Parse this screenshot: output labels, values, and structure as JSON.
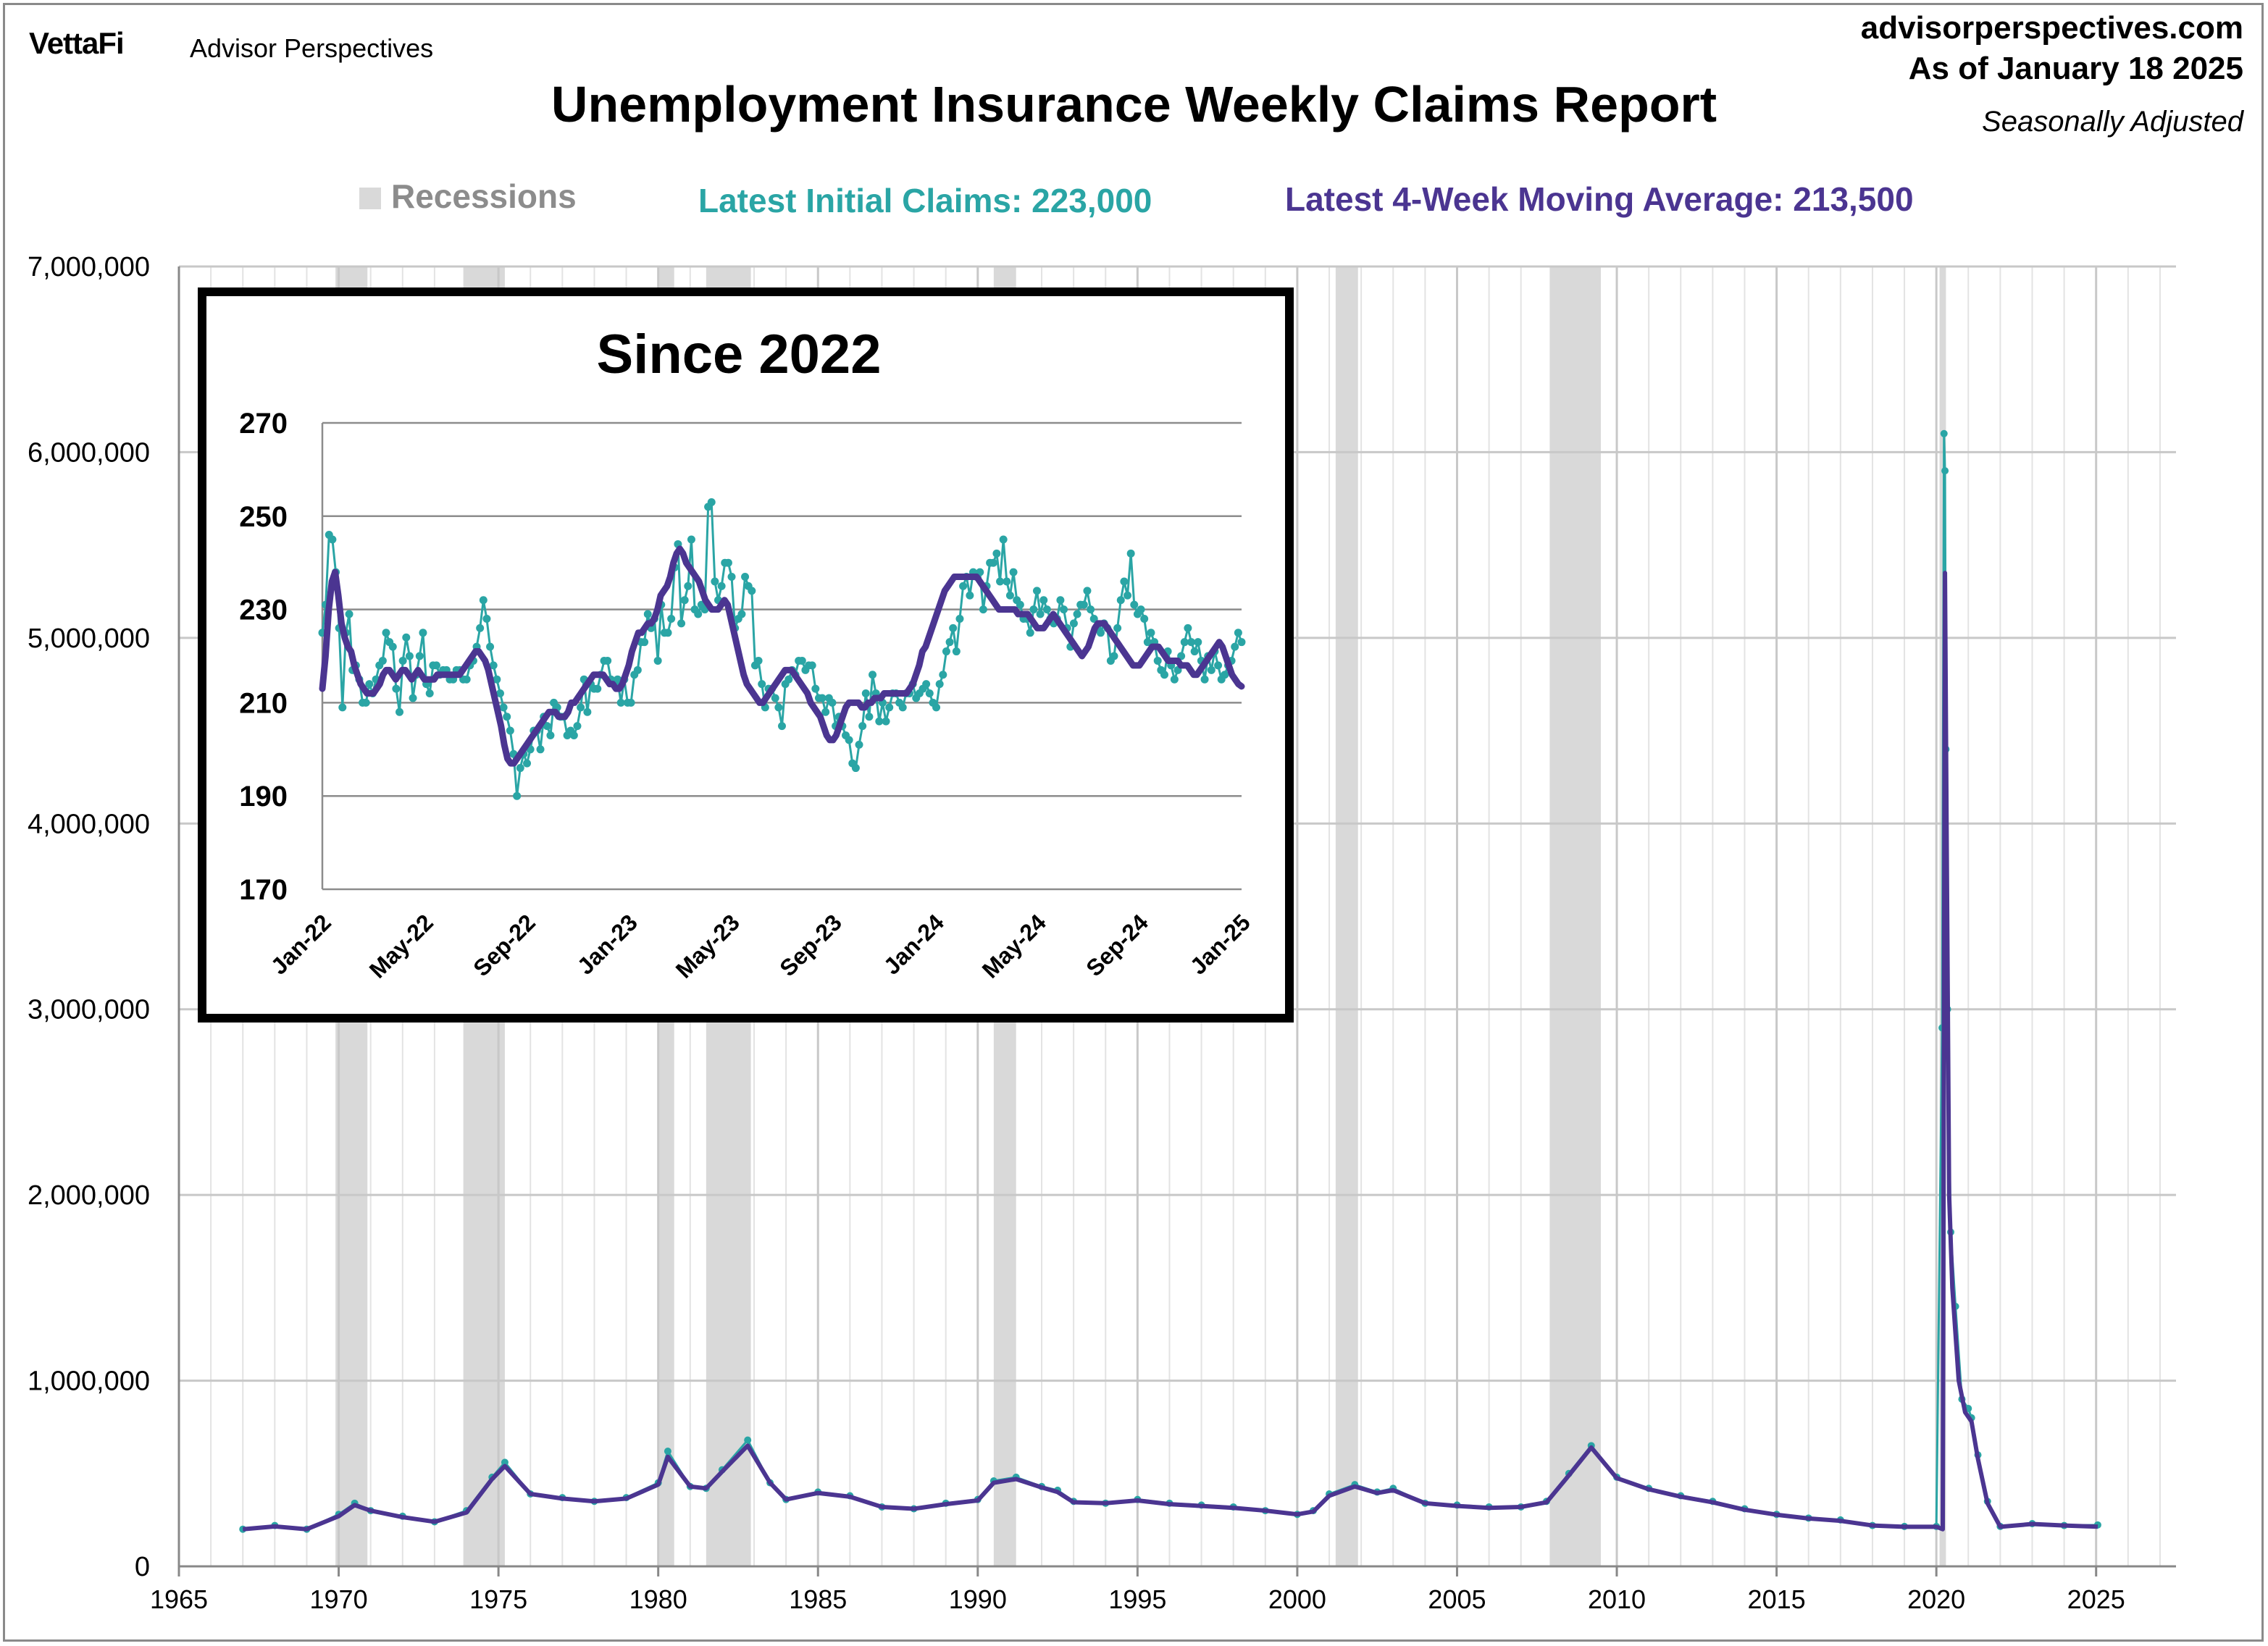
{
  "header": {
    "logo": "VettaFi",
    "brand": "Advisor Perspectives",
    "site": "advisorperspectives.com",
    "as_of": "As of January 18 2025",
    "adjustment": "Seasonally Adjusted",
    "title": "Unemployment Insurance Weekly Claims Report"
  },
  "legend": {
    "recessions": "Recessions",
    "initial_claims": "Latest Initial Claims: 223,000",
    "moving_average": "Latest 4-Week Moving Average: 213,500"
  },
  "colors": {
    "claims": "#2aa5a5",
    "moving_average": "#4b3591",
    "recession": "#d9d9d9",
    "grid": "#c8c8c8"
  },
  "chart_data": [
    {
      "type": "line",
      "title": "Unemployment Insurance Weekly Claims Report",
      "xlabel": "",
      "ylabel": "",
      "xlim": [
        1965,
        2027.5
      ],
      "ylim": [
        0,
        7000000
      ],
      "x_ticks": [
        "1965",
        "1970",
        "1975",
        "1980",
        "1985",
        "1990",
        "1995",
        "2000",
        "2005",
        "2010",
        "2015",
        "2020",
        "2025"
      ],
      "y_ticks": [
        "0",
        "1,000,000",
        "2,000,000",
        "3,000,000",
        "4,000,000",
        "5,000,000",
        "6,000,000",
        "7,000,000"
      ],
      "grid": "on",
      "recessions": [
        [
          1969.9,
          1970.9
        ],
        [
          1973.9,
          1975.2
        ],
        [
          1980.0,
          1980.5
        ],
        [
          1981.5,
          1982.9
        ],
        [
          1990.5,
          1991.2
        ],
        [
          2001.2,
          2001.9
        ],
        [
          2007.9,
          2009.5
        ],
        [
          2020.1,
          2020.3
        ]
      ],
      "series": [
        {
          "name": "Initial Claims",
          "x": [
            1967.0,
            1968.0,
            1969.0,
            1970.0,
            1970.5,
            1971.0,
            1972.0,
            1973.0,
            1974.0,
            1974.8,
            1975.2,
            1976.0,
            1977.0,
            1978.0,
            1979.0,
            1980.0,
            1980.3,
            1981.0,
            1981.5,
            1982.0,
            1982.8,
            1983.5,
            1984.0,
            1985.0,
            1986.0,
            1987.0,
            1988.0,
            1989.0,
            1990.0,
            1990.5,
            1991.2,
            1992.0,
            1992.5,
            1993.0,
            1994.0,
            1995.0,
            1996.0,
            1997.0,
            1998.0,
            1999.0,
            2000.0,
            2000.5,
            2001.0,
            2001.8,
            2002.5,
            2003.0,
            2004.0,
            2005.0,
            2006.0,
            2007.0,
            2007.8,
            2008.5,
            2009.2,
            2010.0,
            2011.0,
            2012.0,
            2013.0,
            2014.0,
            2015.0,
            2016.0,
            2017.0,
            2018.0,
            2019.0,
            2020.0,
            2020.18,
            2020.24,
            2020.27,
            2020.3,
            2020.35,
            2020.45,
            2020.6,
            2020.8,
            2021.0,
            2021.1,
            2021.3,
            2021.6,
            2022.0,
            2023.0,
            2024.0,
            2025.05
          ],
          "values": [
            200000,
            220000,
            200000,
            280000,
            340000,
            300000,
            270000,
            240000,
            300000,
            480000,
            560000,
            390000,
            370000,
            350000,
            370000,
            450000,
            620000,
            430000,
            420000,
            520000,
            680000,
            450000,
            360000,
            400000,
            380000,
            320000,
            310000,
            340000,
            360000,
            460000,
            480000,
            430000,
            410000,
            350000,
            340000,
            360000,
            340000,
            330000,
            320000,
            300000,
            280000,
            300000,
            390000,
            440000,
            400000,
            420000,
            340000,
            330000,
            320000,
            320000,
            350000,
            500000,
            650000,
            480000,
            420000,
            380000,
            350000,
            310000,
            280000,
            260000,
            250000,
            220000,
            215000,
            215000,
            2900000,
            6100000,
            5900000,
            4400000,
            3000000,
            1800000,
            1400000,
            900000,
            850000,
            800000,
            600000,
            350000,
            215000,
            230000,
            220000,
            223000
          ]
        },
        {
          "name": "4-Week Moving Average",
          "x": [
            1967.0,
            1968.0,
            1969.0,
            1970.0,
            1970.5,
            1971.0,
            1972.0,
            1973.0,
            1974.0,
            1974.8,
            1975.2,
            1976.0,
            1977.0,
            1978.0,
            1979.0,
            1980.0,
            1980.3,
            1981.0,
            1981.5,
            1982.0,
            1982.8,
            1983.5,
            1984.0,
            1985.0,
            1986.0,
            1987.0,
            1988.0,
            1989.0,
            1990.0,
            1990.5,
            1991.2,
            1992.0,
            1992.5,
            1993.0,
            1994.0,
            1995.0,
            1996.0,
            1997.0,
            1998.0,
            1999.0,
            2000.0,
            2000.5,
            2001.0,
            2001.8,
            2002.5,
            2003.0,
            2004.0,
            2005.0,
            2006.0,
            2007.0,
            2007.8,
            2008.5,
            2009.2,
            2010.0,
            2011.0,
            2012.0,
            2013.0,
            2014.0,
            2015.0,
            2016.0,
            2017.0,
            2018.0,
            2019.0,
            2020.0,
            2020.2,
            2020.27,
            2020.32,
            2020.4,
            2020.5,
            2020.7,
            2020.9,
            2021.1,
            2021.3,
            2021.6,
            2022.0,
            2023.0,
            2024.0,
            2025.05
          ],
          "values": [
            200000,
            215000,
            200000,
            270000,
            330000,
            300000,
            265000,
            240000,
            290000,
            470000,
            540000,
            390000,
            365000,
            350000,
            365000,
            440000,
            590000,
            430000,
            420000,
            510000,
            650000,
            450000,
            360000,
            395000,
            375000,
            320000,
            310000,
            335000,
            355000,
            450000,
            470000,
            425000,
            400000,
            345000,
            340000,
            355000,
            335000,
            325000,
            315000,
            300000,
            280000,
            295000,
            380000,
            430000,
            395000,
            410000,
            340000,
            325000,
            315000,
            320000,
            345000,
            490000,
            640000,
            475000,
            415000,
            375000,
            345000,
            305000,
            278000,
            258000,
            245000,
            220000,
            213000,
            213000,
            200000,
            5350000,
            4000000,
            2000000,
            1500000,
            1000000,
            830000,
            780000,
            580000,
            340000,
            213000,
            228000,
            220000,
            213500
          ]
        }
      ]
    },
    {
      "type": "line",
      "title": "Since 2022",
      "xlabel": "",
      "ylabel": "",
      "ylim": [
        170,
        270
      ],
      "x_ticks": [
        "Jan-22",
        "May-22",
        "Sep-22",
        "Jan-23",
        "May-23",
        "Sep-23",
        "Jan-24",
        "May-24",
        "Sep-24",
        "Jan-25"
      ],
      "y_ticks": [
        "170",
        "190",
        "210",
        "230",
        "250",
        "270"
      ],
      "grid": "on",
      "x_start": "Jan-22",
      "x_step": "1 week",
      "series": [
        {
          "name": "Initial Claims",
          "values": [
            225,
            231,
            246,
            245,
            238,
            226,
            209,
            225,
            229,
            217,
            218,
            215,
            210,
            210,
            214,
            212,
            215,
            218,
            219,
            225,
            223,
            222,
            213,
            208,
            219,
            224,
            220,
            211,
            216,
            220,
            225,
            214,
            212,
            218,
            218,
            216,
            217,
            217,
            215,
            215,
            217,
            217,
            215,
            215,
            218,
            219,
            222,
            226,
            232,
            228,
            222,
            218,
            215,
            212,
            209,
            207,
            204,
            199,
            190,
            196,
            199,
            197,
            200,
            204,
            204,
            200,
            207,
            205,
            203,
            210,
            209,
            207,
            207,
            203,
            204,
            203,
            205,
            209,
            215,
            208,
            214,
            213,
            213,
            216,
            219,
            219,
            215,
            214,
            215,
            210,
            215,
            210,
            210,
            216,
            217,
            223,
            223,
            229,
            226,
            228,
            219,
            231,
            225,
            225,
            228,
            239,
            244,
            227,
            232,
            235,
            245,
            230,
            229,
            231,
            230,
            252,
            253,
            236,
            232,
            235,
            240,
            240,
            237,
            226,
            228,
            229,
            237,
            235,
            234,
            218,
            219,
            214,
            209,
            213,
            213,
            211,
            209,
            205,
            214,
            215,
            217,
            216,
            219,
            219,
            217,
            218,
            218,
            213,
            211,
            211,
            208,
            211,
            210,
            205,
            207,
            205,
            203,
            202,
            197,
            196,
            201,
            205,
            212,
            207,
            216,
            212,
            206,
            210,
            206,
            209,
            212,
            212,
            210,
            209,
            212,
            212,
            214,
            211,
            212,
            213,
            214,
            212,
            210,
            209,
            214,
            216,
            221,
            223,
            226,
            221,
            228,
            235,
            237,
            233,
            238,
            237,
            238,
            230,
            235,
            240,
            240,
            242,
            236,
            245,
            236,
            233,
            238,
            232,
            231,
            228,
            228,
            225,
            230,
            234,
            229,
            232,
            230,
            228,
            227,
            228,
            232,
            230,
            226,
            222,
            227,
            229,
            231,
            231,
            234,
            230,
            228,
            226,
            225,
            227,
            226,
            219,
            220,
            226,
            232,
            236,
            233,
            242,
            231,
            229,
            230,
            228,
            223,
            225,
            223,
            219,
            217,
            216,
            221,
            218,
            215,
            217,
            220,
            223,
            226,
            223,
            221,
            223,
            219,
            215,
            220,
            217,
            221,
            218,
            215,
            216,
            218,
            219,
            222,
            225,
            223
          ]
        },
        {
          "name": "4-Week Moving Average",
          "values": [
            213,
            220,
            230,
            236,
            238,
            233,
            227,
            224,
            222,
            221,
            218,
            216,
            214,
            213,
            212,
            212,
            212,
            213,
            214,
            216,
            217,
            217,
            216,
            215,
            216,
            217,
            217,
            216,
            215,
            216,
            217,
            216,
            215,
            215,
            215,
            215,
            216,
            216,
            216,
            216,
            216,
            216,
            216,
            216,
            217,
            218,
            219,
            220,
            221,
            221,
            220,
            219,
            217,
            214,
            211,
            208,
            205,
            201,
            198,
            197,
            197,
            198,
            199,
            200,
            201,
            202,
            203,
            204,
            205,
            206,
            207,
            208,
            208,
            208,
            207,
            207,
            207,
            208,
            210,
            210,
            211,
            212,
            213,
            214,
            215,
            216,
            216,
            216,
            216,
            215,
            214,
            214,
            213,
            213,
            214,
            216,
            218,
            221,
            223,
            225,
            225,
            226,
            227,
            227,
            228,
            230,
            233,
            234,
            235,
            237,
            240,
            242,
            243,
            242,
            240,
            239,
            238,
            237,
            236,
            234,
            232,
            231,
            230,
            230,
            230,
            231,
            232,
            231,
            228,
            225,
            222,
            219,
            216,
            214,
            213,
            212,
            211,
            210,
            210,
            211,
            212,
            213,
            214,
            215,
            216,
            217,
            217,
            217,
            216,
            215,
            214,
            213,
            212,
            210,
            209,
            208,
            207,
            205,
            203,
            202,
            202,
            203,
            205,
            207,
            209,
            210,
            210,
            210,
            210,
            209,
            209,
            210,
            210,
            211,
            211,
            211,
            212,
            212,
            212,
            212,
            212,
            212,
            212,
            212,
            213,
            214,
            216,
            218,
            221,
            222,
            224,
            226,
            228,
            230,
            232,
            234,
            235,
            236,
            237,
            237,
            237,
            237,
            237,
            237,
            237,
            237,
            236,
            235,
            234,
            233,
            232,
            231,
            230,
            230,
            230,
            230,
            230,
            230,
            229,
            229,
            229,
            229,
            228,
            227,
            226,
            226,
            226,
            227,
            228,
            229,
            228,
            227,
            226,
            225,
            224,
            223,
            222,
            221,
            220,
            221,
            222,
            224,
            226,
            227,
            227,
            227,
            226,
            225,
            224,
            223,
            222,
            221,
            220,
            219,
            218,
            218,
            218,
            219,
            220,
            221,
            222,
            222,
            222,
            221,
            220,
            219,
            219,
            219,
            219,
            218,
            218,
            218,
            217,
            216,
            216,
            217,
            218,
            219,
            220,
            221,
            222,
            223,
            222,
            220,
            218,
            216,
            215,
            214,
            213.5
          ]
        }
      ]
    }
  ]
}
